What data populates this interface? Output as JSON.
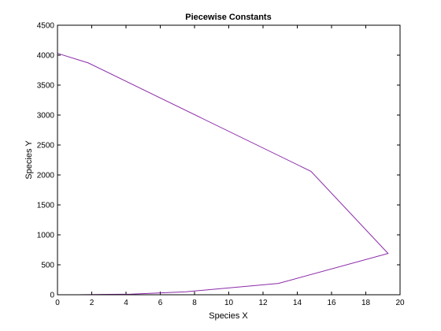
{
  "chart_data": {
    "type": "line",
    "title": "Piecewise Constants",
    "xlabel": "Species X",
    "ylabel": "Species Y",
    "xlim": [
      0,
      20
    ],
    "ylim": [
      0,
      4500
    ],
    "xticks": [
      0,
      2,
      4,
      6,
      8,
      10,
      12,
      14,
      16,
      18,
      20
    ],
    "yticks": [
      0,
      500,
      1000,
      1500,
      2000,
      2500,
      3000,
      3500,
      4000,
      4500
    ],
    "grid": false,
    "series": [
      {
        "color": "#8b2aa8",
        "x": [
          1.0,
          1.2,
          4.3,
          7.5,
          12.9,
          19.3,
          14.8,
          1.8,
          0.0
        ],
        "y": [
          0,
          0,
          10,
          50,
          190,
          690,
          2060,
          3870,
          4030
        ]
      }
    ]
  }
}
